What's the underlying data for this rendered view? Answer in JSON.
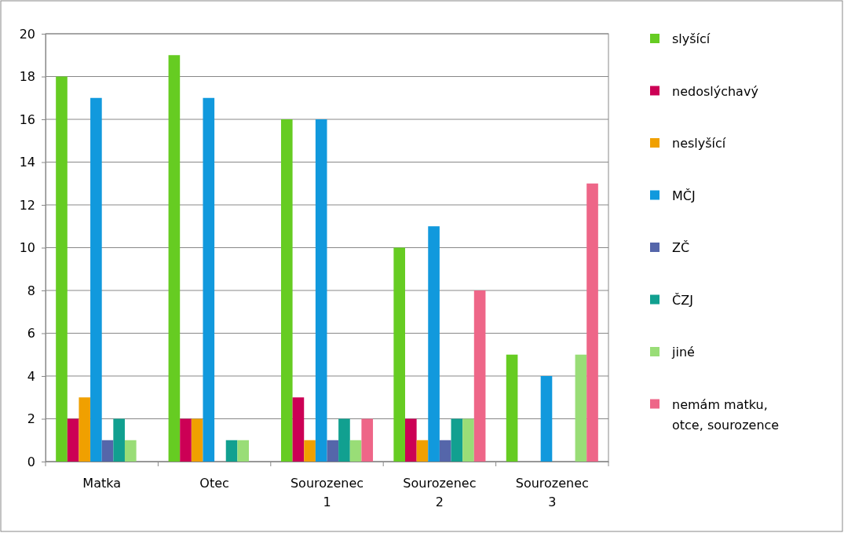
{
  "chart_data": {
    "type": "bar",
    "categories": [
      "Matka",
      "Otec",
      "Sourozenec 1",
      "Sourozenec 2",
      "Sourozenec 3"
    ],
    "series": [
      {
        "name": "slyšící",
        "color": "#66cc22",
        "values": [
          18,
          19,
          16,
          10,
          5
        ]
      },
      {
        "name": "nedoslýchavý",
        "color": "#cc0055",
        "values": [
          2,
          2,
          3,
          2,
          0
        ]
      },
      {
        "name": "neslyšící",
        "color": "#f0a000",
        "values": [
          3,
          2,
          1,
          1,
          0
        ]
      },
      {
        "name": "MČJ",
        "color": "#1199dd",
        "values": [
          17,
          17,
          16,
          11,
          4
        ]
      },
      {
        "name": "ZČ",
        "color": "#5566aa",
        "values": [
          1,
          0,
          1,
          1,
          0
        ]
      },
      {
        "name": "ČZJ",
        "color": "#11a090",
        "values": [
          2,
          1,
          2,
          2,
          0
        ]
      },
      {
        "name": "jiné",
        "color": "#99dd77",
        "values": [
          1,
          1,
          1,
          2,
          5
        ]
      },
      {
        "name": "nemám matku, otce, sourozence",
        "color": "#ee6688",
        "values": [
          0,
          0,
          2,
          8,
          13
        ]
      }
    ],
    "ylim": [
      0,
      20
    ],
    "yticks": [
      0,
      2,
      4,
      6,
      8,
      10,
      12,
      14,
      16,
      18,
      20
    ],
    "grid": "y",
    "legend": "right"
  }
}
